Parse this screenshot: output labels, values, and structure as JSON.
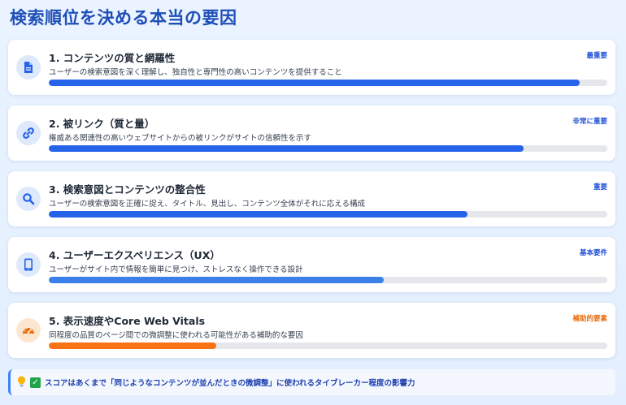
{
  "page": {
    "title": "検索順位を決める本当の要因"
  },
  "factors": [
    {
      "title": "1. コンテンツの質と網羅性",
      "description": "ユーザーの検索意図を深く理解し、独自性と専門性の高いコンテンツを提供すること",
      "badge": "最重要",
      "level": 0.95,
      "icon": "document-icon",
      "color": "#2563eb"
    },
    {
      "title": "2. 被リンク（質と量）",
      "description": "権威ある関連性の高いウェブサイトからの被リンクがサイトの信頼性を示す",
      "badge": "非常に重要",
      "level": 0.85,
      "icon": "link-icon",
      "color": "#2563eb"
    },
    {
      "title": "3. 検索意図とコンテンツの整合性",
      "description": "ユーザーの検索意図を正確に捉え、タイトル、見出し、コンテンツ全体がそれに応える構成",
      "badge": "重要",
      "level": 0.75,
      "icon": "search-icon",
      "color": "#2563eb"
    },
    {
      "title": "4. ユーザーエクスペリエンス（UX）",
      "description": "ユーザーがサイト内で情報を簡単に見つけ、ストレスなく操作できる設計",
      "badge": "基本要件",
      "level": 0.6,
      "icon": "mobile-icon",
      "color": "#3b7fe8"
    },
    {
      "title": "5. 表示速度やCore Web Vitals",
      "description": "同程度の品質のページ間での微調整に使われる可能性がある補助的な要因",
      "badge": "補助的要素",
      "level": 0.3,
      "icon": "speedometer-icon",
      "color": "#f97316"
    }
  ],
  "note": {
    "text": "スコアはあくまで「同じようなコンテンツが並んだときの微調整」に使われるタイブレーカー程度の影響力",
    "icons": [
      "lightbulb-icon",
      "check-icon"
    ]
  }
}
